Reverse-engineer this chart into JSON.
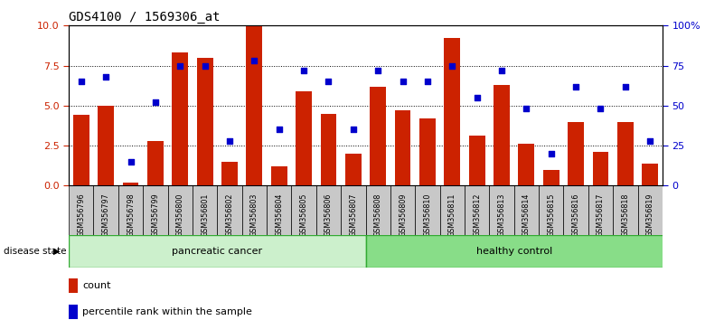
{
  "title": "GDS4100 / 1569306_at",
  "samples": [
    "GSM356796",
    "GSM356797",
    "GSM356798",
    "GSM356799",
    "GSM356800",
    "GSM356801",
    "GSM356802",
    "GSM356803",
    "GSM356804",
    "GSM356805",
    "GSM356806",
    "GSM356807",
    "GSM356808",
    "GSM356809",
    "GSM356810",
    "GSM356811",
    "GSM356812",
    "GSM356813",
    "GSM356814",
    "GSM356815",
    "GSM356816",
    "GSM356817",
    "GSM356818",
    "GSM356819"
  ],
  "bar_values": [
    4.4,
    5.0,
    0.2,
    2.8,
    8.3,
    8.0,
    1.5,
    10.0,
    1.2,
    5.9,
    4.5,
    2.0,
    6.2,
    4.7,
    4.2,
    9.2,
    3.1,
    6.3,
    2.6,
    1.0,
    4.0,
    2.1,
    4.0,
    1.4
  ],
  "dot_values": [
    65,
    68,
    15,
    52,
    75,
    75,
    28,
    78,
    35,
    72,
    65,
    35,
    72,
    65,
    65,
    75,
    55,
    72,
    48,
    20,
    62,
    48,
    62,
    28
  ],
  "group1_count": 12,
  "group2_count": 12,
  "group1_label": "pancreatic cancer",
  "group2_label": "healthy control",
  "disease_label": "disease state",
  "bar_color": "#cc2200",
  "dot_color": "#0000cc",
  "ylim_left": [
    0,
    10
  ],
  "ylim_right": [
    0,
    100
  ],
  "yticks_left": [
    0,
    2.5,
    5.0,
    7.5,
    10
  ],
  "yticks_right": [
    0,
    25,
    50,
    75,
    100
  ],
  "ytick_labels_right": [
    "0",
    "25",
    "50",
    "75",
    "100%"
  ],
  "gridlines": [
    2.5,
    5.0,
    7.5
  ],
  "bg_color": "#ffffff",
  "tick_box_color": "#c8c8c8",
  "group1_color": "#ccf0cc",
  "group2_color": "#88dd88",
  "legend_bar_label": "count",
  "legend_dot_label": "percentile rank within the sample",
  "right_ytick_labels": [
    "0",
    "25",
    "50",
    "75",
    "100%"
  ]
}
